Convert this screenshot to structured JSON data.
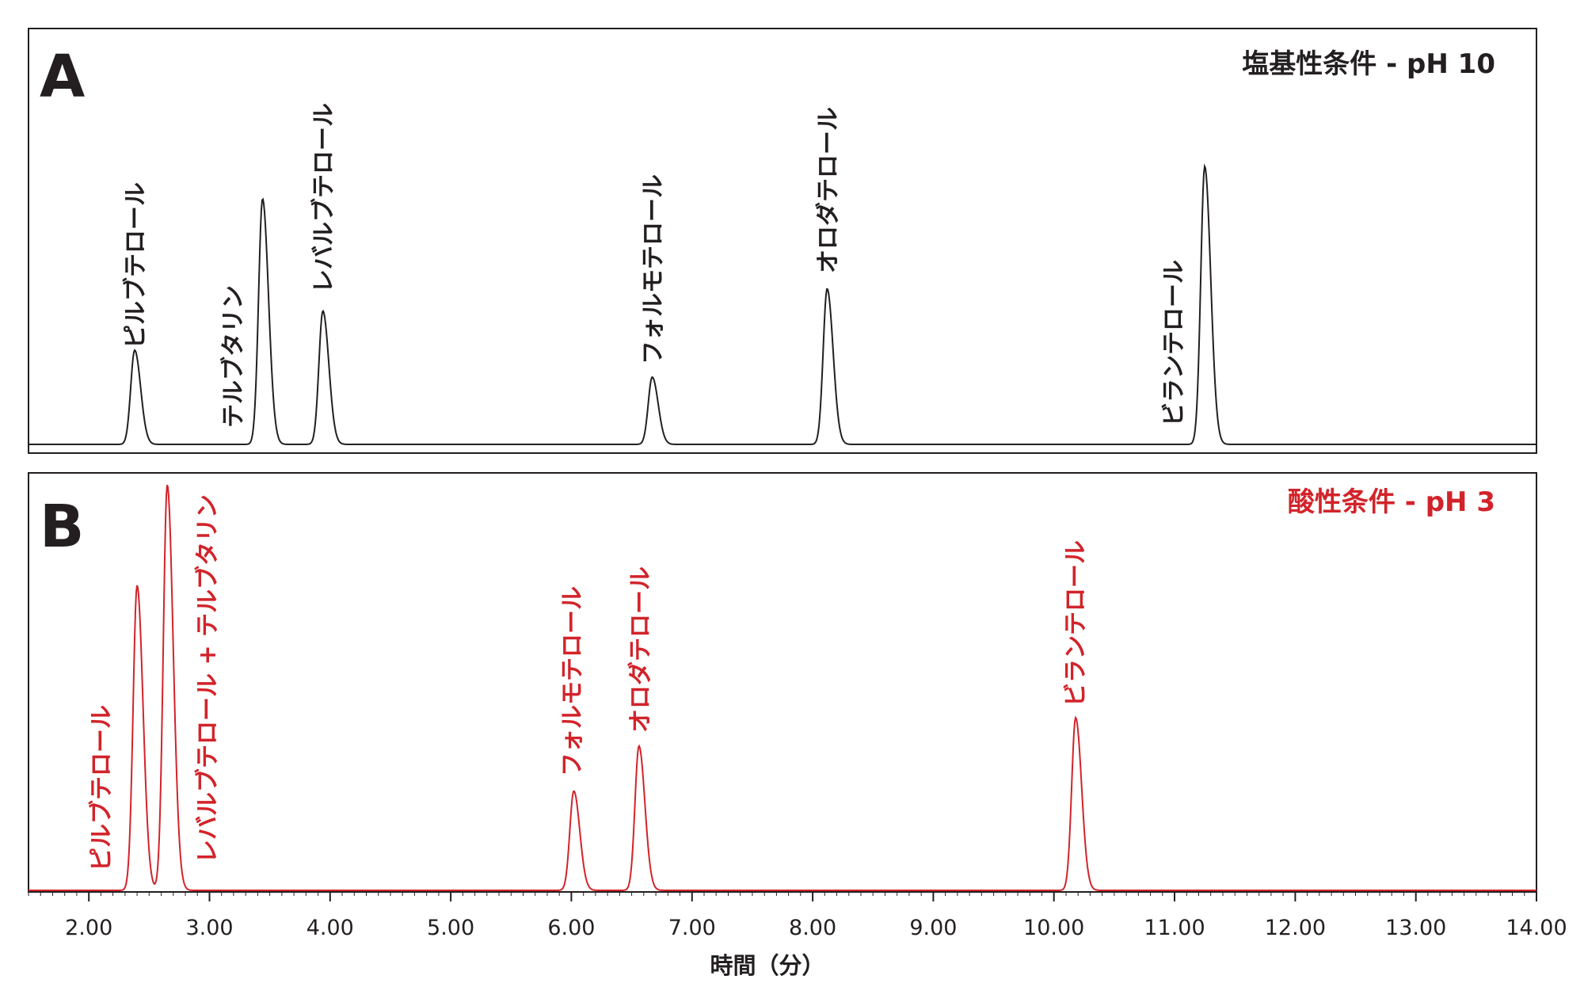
{
  "chart_data": [
    {
      "type": "line",
      "panel": "A",
      "condition": "塩基性条件 - pH 10",
      "color": "#231f20",
      "xlabel": "時間（分）",
      "xlim": [
        1.5,
        14.0
      ],
      "peaks": [
        {
          "name": "ピルブテロール",
          "x": 2.38,
          "height": 0.305
        },
        {
          "name": "テルブタリン",
          "x": 3.44,
          "height": 0.795
        },
        {
          "name": "レバルブテロール",
          "x": 3.94,
          "height": 0.432
        },
        {
          "name": "フォルモテロール",
          "x": 6.67,
          "height": 0.218
        },
        {
          "name": "オロダテロール",
          "x": 8.12,
          "height": 0.504
        },
        {
          "name": "ビランテロール",
          "x": 11.25,
          "height": 0.9
        }
      ]
    },
    {
      "type": "line",
      "panel": "B",
      "condition": "酸性条件 - pH 3",
      "color": "#d2232a",
      "xlabel": "時間（分）",
      "xlim": [
        1.5,
        14.0
      ],
      "peaks": [
        {
          "name": "ピルブテロール",
          "x": 2.4,
          "height": 0.752
        },
        {
          "name": "レバルブテロール + テルブタリン",
          "x": 2.65,
          "height": 1.0
        },
        {
          "name": "フォルモテロール",
          "x": 6.02,
          "height": 0.245
        },
        {
          "name": "オロダテロール",
          "x": 6.56,
          "height": 0.356
        },
        {
          "name": "ビランテロール",
          "x": 10.18,
          "height": 0.426
        }
      ]
    }
  ],
  "x_ticks": [
    "2.00",
    "3.00",
    "4.00",
    "5.00",
    "6.00",
    "7.00",
    "8.00",
    "9.00",
    "10.00",
    "11.00",
    "12.00",
    "13.00",
    "14.00"
  ]
}
